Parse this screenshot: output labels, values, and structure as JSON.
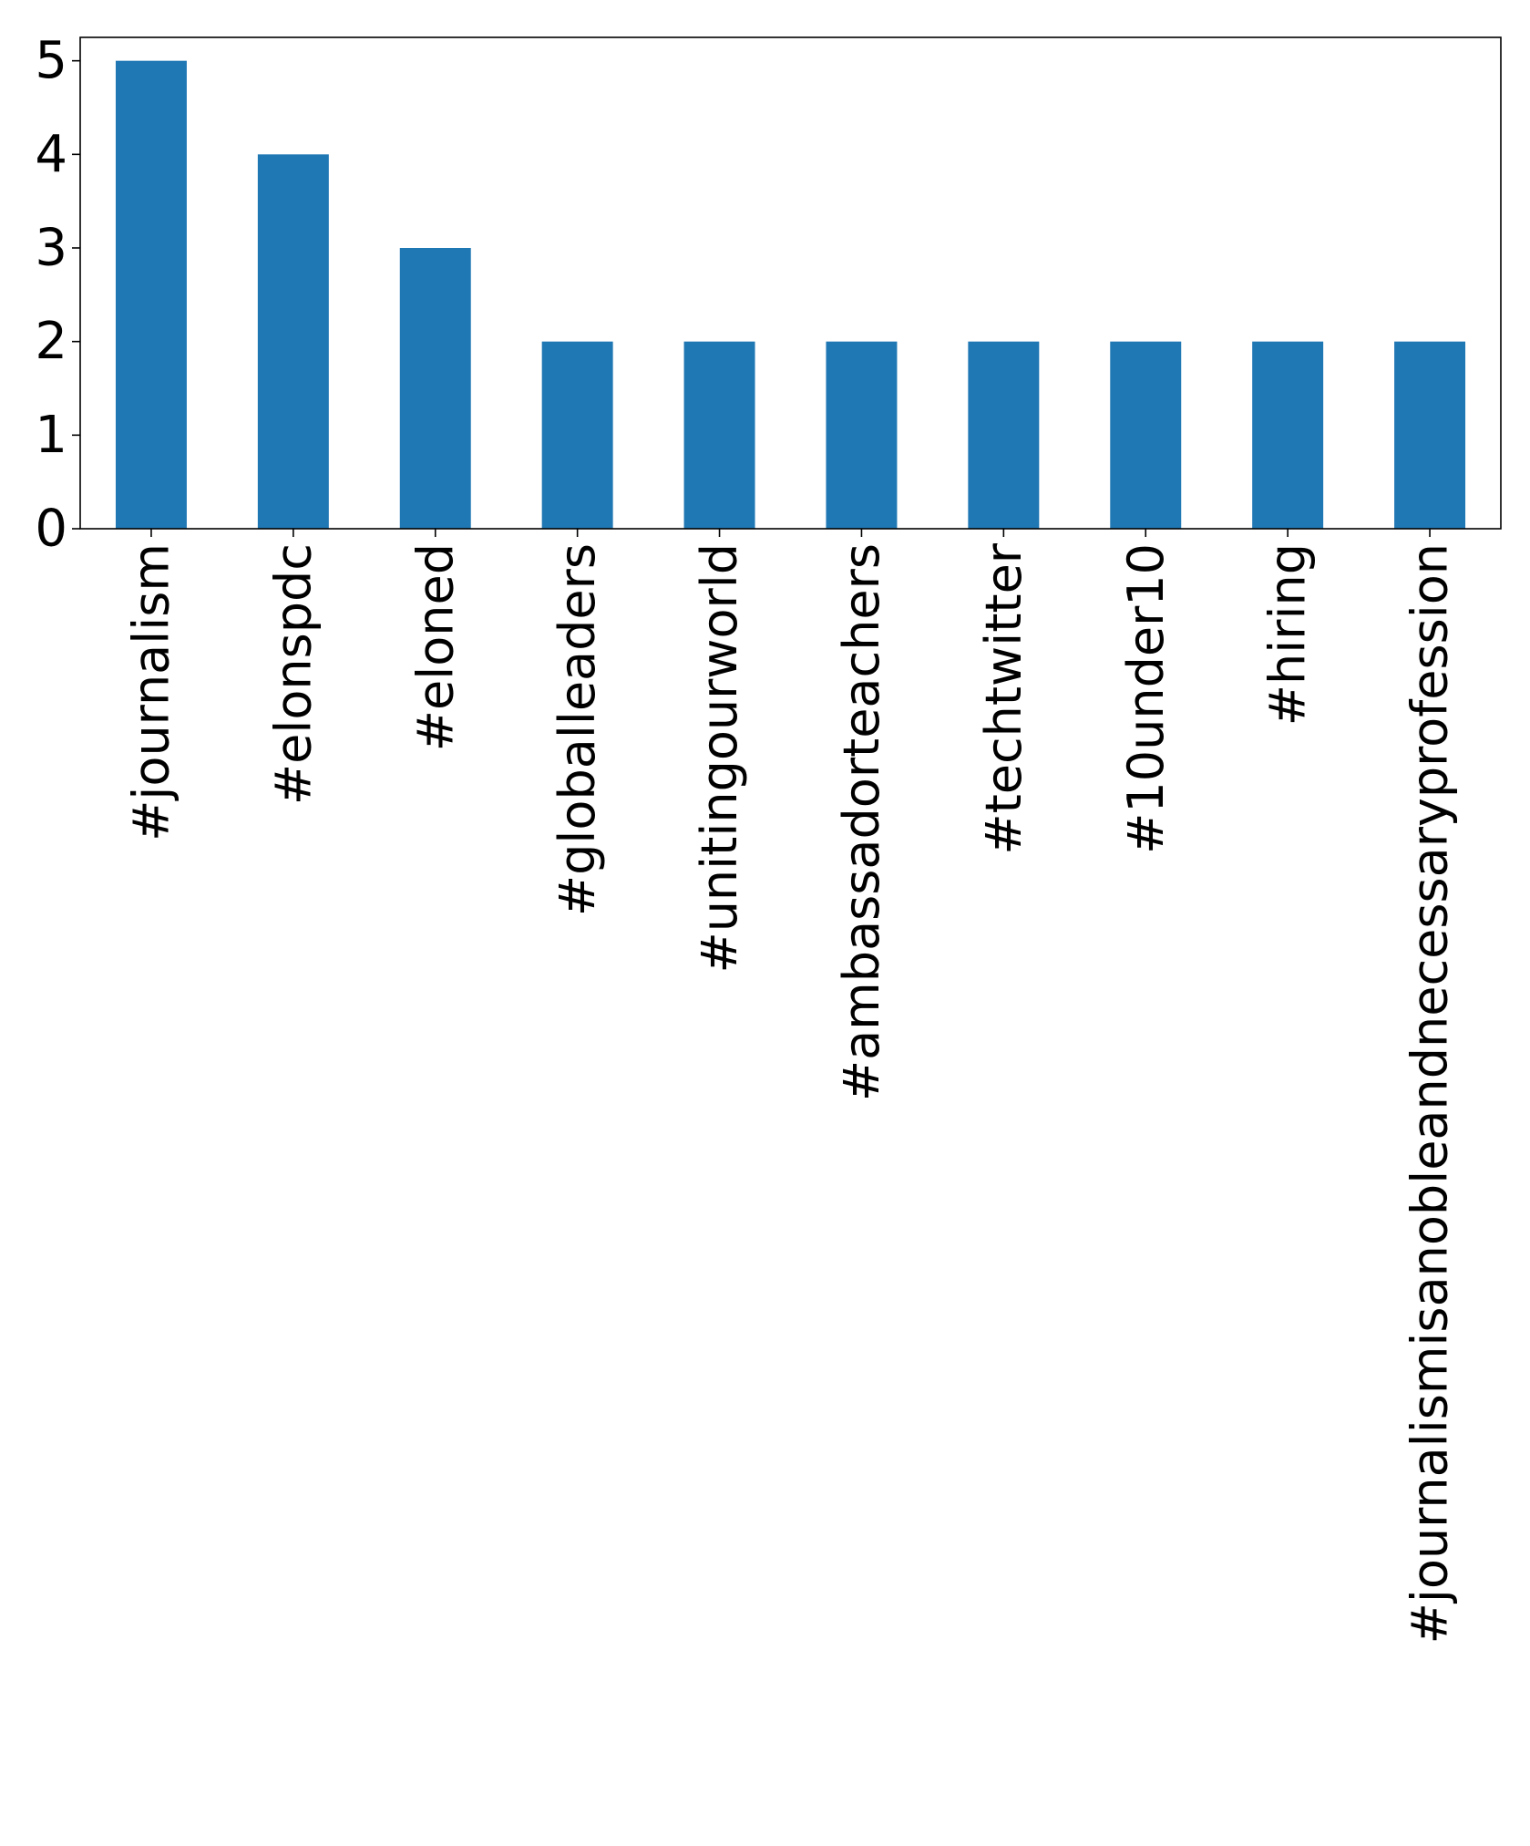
{
  "chart_data": {
    "type": "bar",
    "categories": [
      "#journalism",
      "#elonspdc",
      "#eloned",
      "#globalleaders",
      "#unitingourworld",
      "#ambassadorteachers",
      "#techtwitter",
      "#10under10",
      "#hiring",
      "#journalismisanobleandnecessaryprofession"
    ],
    "values": [
      5,
      4,
      3,
      2,
      2,
      2,
      2,
      2,
      2,
      2
    ],
    "title": "",
    "xlabel": "",
    "ylabel": "",
    "ylim": [
      0,
      5.25
    ],
    "yticks": [
      "0",
      "1",
      "2",
      "3",
      "4",
      "5"
    ],
    "grid": false,
    "bar_color": "#1f77b4"
  }
}
